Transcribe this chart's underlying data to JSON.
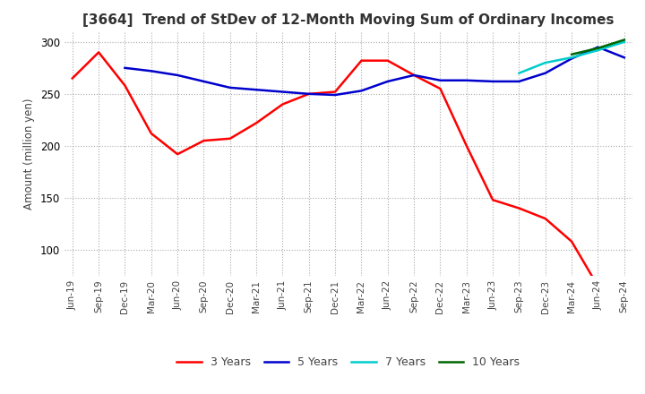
{
  "title": "[3664]  Trend of StDev of 12-Month Moving Sum of Ordinary Incomes",
  "ylabel": "Amount (million yen)",
  "ylim": [
    75,
    310
  ],
  "yticks": [
    100,
    150,
    200,
    250,
    300
  ],
  "colors": {
    "3y": "#ff0000",
    "5y": "#0000cc",
    "7y": "#00cccc",
    "10y": "#006600"
  },
  "legend_labels": [
    "3 Years",
    "5 Years",
    "7 Years",
    "10 Years"
  ],
  "x_labels": [
    "Jun-19",
    "Sep-19",
    "Dec-19",
    "Mar-20",
    "Jun-20",
    "Sep-20",
    "Dec-20",
    "Mar-21",
    "Jun-21",
    "Sep-21",
    "Dec-21",
    "Mar-22",
    "Jun-22",
    "Sep-22",
    "Dec-22",
    "Mar-23",
    "Jun-23",
    "Sep-23",
    "Dec-23",
    "Mar-24",
    "Jun-24",
    "Sep-24"
  ],
  "series_3y": [
    265,
    290,
    258,
    212,
    192,
    205,
    207,
    222,
    240,
    250,
    252,
    282,
    282,
    268,
    255,
    200,
    148,
    140,
    130,
    108,
    65,
    null
  ],
  "series_5y": [
    null,
    null,
    275,
    272,
    268,
    262,
    256,
    254,
    252,
    250,
    249,
    253,
    262,
    268,
    263,
    263,
    262,
    262,
    270,
    284,
    295,
    285
  ],
  "series_7y": [
    null,
    null,
    null,
    null,
    null,
    null,
    null,
    null,
    null,
    null,
    null,
    null,
    null,
    null,
    null,
    null,
    null,
    270,
    280,
    285,
    292,
    300
  ],
  "series_10y": [
    null,
    null,
    null,
    null,
    null,
    null,
    null,
    null,
    null,
    null,
    null,
    null,
    null,
    null,
    null,
    null,
    null,
    null,
    null,
    288,
    294,
    302
  ]
}
